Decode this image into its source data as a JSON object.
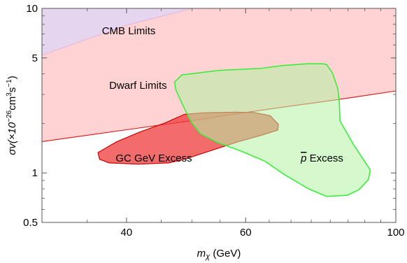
{
  "chart_data": {
    "type": "area",
    "xlabel": {
      "main": "m",
      "sub": "χ",
      "rest": " (GeV)"
    },
    "ylabel": {
      "main": "σv(×10",
      "exp1": "−26",
      "mid": "cm",
      "exp2": "3",
      "mid2": "s",
      "exp3": "−1",
      "end": ")"
    },
    "xscale": "log",
    "yscale": "log",
    "xlim": [
      30,
      100
    ],
    "ylim": [
      0.5,
      10
    ],
    "xticks": [
      {
        "value": 40,
        "label": "40"
      },
      {
        "value": 60,
        "label": "60"
      },
      {
        "value": 100,
        "label": "100"
      }
    ],
    "xminor": [
      30,
      35,
      45,
      50,
      55,
      65,
      70,
      75,
      80,
      85,
      90,
      95
    ],
    "yticks": [
      {
        "value": 0.5,
        "label": "0.5"
      },
      {
        "value": 1,
        "label": "1"
      },
      {
        "value": 5,
        "label": "5"
      },
      {
        "value": 10,
        "label": "10"
      }
    ],
    "yminor": [
      0.6,
      0.7,
      0.8,
      0.9,
      2,
      3,
      4,
      6,
      7,
      8,
      9
    ],
    "grid": false,
    "colors": {
      "cmb_fill": "#e6d5ee",
      "dwarf_fill": "#ffd3d3",
      "dwarf_line": "#dd1111",
      "gc_fill": "#ee3b3b",
      "gc_line": "#cc0000",
      "pbar_fill": "#b3f3a3",
      "pbar_line": "#33ee33"
    },
    "series": [
      {
        "name": "CMB Limits",
        "kind": "upper_limit_band",
        "points": [
          [
            30,
            5.2
          ],
          [
            40,
            7.9
          ],
          [
            50,
            10.0
          ],
          [
            55,
            10.9
          ]
        ]
      },
      {
        "name": "Dwarf Limits",
        "kind": "upper_limit_band",
        "points": [
          [
            30,
            1.55
          ],
          [
            40,
            1.83
          ],
          [
            50,
            2.08
          ],
          [
            60,
            2.33
          ],
          [
            70,
            2.55
          ],
          [
            80,
            2.75
          ],
          [
            90,
            2.95
          ],
          [
            100,
            3.15
          ]
        ]
      },
      {
        "name": "GC GeV Excess",
        "kind": "region",
        "points": [
          [
            36.3,
            1.33
          ],
          [
            36.5,
            1.21
          ],
          [
            37.7,
            1.15
          ],
          [
            41.6,
            1.13
          ],
          [
            46.2,
            1.15
          ],
          [
            49.0,
            1.22
          ],
          [
            53.7,
            1.38
          ],
          [
            58.6,
            1.55
          ],
          [
            63.5,
            1.7
          ],
          [
            66.9,
            1.82
          ],
          [
            67.1,
            1.97
          ],
          [
            65.2,
            2.23
          ],
          [
            61.7,
            2.33
          ],
          [
            57.9,
            2.34
          ],
          [
            52.1,
            2.32
          ],
          [
            48.7,
            2.27
          ],
          [
            45.7,
            2.02
          ],
          [
            41.8,
            1.77
          ],
          [
            38.6,
            1.54
          ]
        ]
      },
      {
        "name": "p̄ Excess",
        "kind": "region",
        "points": [
          [
            47.1,
            3.57
          ],
          [
            48.3,
            3.94
          ],
          [
            54.8,
            4.2
          ],
          [
            63.2,
            4.32
          ],
          [
            68.2,
            4.5
          ],
          [
            73.8,
            4.6
          ],
          [
            77.7,
            4.61
          ],
          [
            79.0,
            4.57
          ],
          [
            80.6,
            4.05
          ],
          [
            82.1,
            3.24
          ],
          [
            82.5,
            2.71
          ],
          [
            82.7,
            2.07
          ],
          [
            86.5,
            1.5
          ],
          [
            91.7,
            1.04
          ],
          [
            91.1,
            0.91
          ],
          [
            88.2,
            0.79
          ],
          [
            84.7,
            0.73
          ],
          [
            79.0,
            0.72
          ],
          [
            74.3,
            0.8
          ],
          [
            68.6,
            0.97
          ],
          [
            64.0,
            1.18
          ],
          [
            59.0,
            1.36
          ],
          [
            54.5,
            1.53
          ],
          [
            51.4,
            1.73
          ],
          [
            49.8,
            2.05
          ],
          [
            48.4,
            2.6
          ],
          [
            47.3,
            3.21
          ]
        ]
      }
    ],
    "labels": [
      {
        "text": "CMB Limits",
        "x": 40.3,
        "y": 7.3
      },
      {
        "text": "Dwarf Limits",
        "x": 41.6,
        "y": 3.4
      },
      {
        "text": "GC GeV Excess",
        "x": 43.9,
        "y": 1.23
      },
      {
        "text": "p Excess",
        "bar": "p",
        "rest": " Excess",
        "x": 77.8,
        "y": 1.23
      }
    ]
  }
}
